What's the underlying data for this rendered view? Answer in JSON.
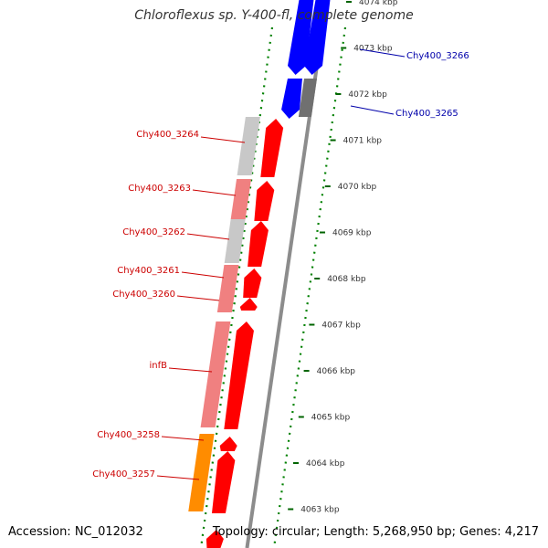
{
  "title": "Chloroflexus sp. Y-400-fl, complete genome",
  "footer": {
    "accession": "Accession: NC_012032",
    "topology": "Topology: circular; Length: 5,268,950 bp; Genes: 4,217"
  },
  "colors": {
    "gene_red": "#ff0000",
    "gene_blue": "#0000ff",
    "label_red": "#cc0000",
    "label_blue": "#0000aa",
    "orange": "#ff8c00",
    "pink": "#f08080",
    "light_gray": "#c8c8c8",
    "dark_gray": "#707070",
    "tick_green": "#008000"
  },
  "scale_labels": [
    "4074 kbp",
    "4073 kbp",
    "4072 kbp",
    "4071 kbp",
    "4070 kbp",
    "4069 kbp",
    "4068 kbp",
    "4067 kbp",
    "4066 kbp",
    "4065 kbp",
    "4064 kbp",
    "4063 kbp"
  ],
  "gene_labels": [
    {
      "text": "Chy400_3266",
      "color": "blue"
    },
    {
      "text": "Chy400_3265",
      "color": "blue"
    },
    {
      "text": "Chy400_3264",
      "color": "red"
    },
    {
      "text": "Chy400_3263",
      "color": "red"
    },
    {
      "text": "Chy400_3262",
      "color": "red"
    },
    {
      "text": "Chy400_3261",
      "color": "red"
    },
    {
      "text": "Chy400_3260",
      "color": "red"
    },
    {
      "text": "infB",
      "color": "red"
    },
    {
      "text": "Chy400_3258",
      "color": "red"
    },
    {
      "text": "Chy400_3257",
      "color": "red"
    }
  ]
}
